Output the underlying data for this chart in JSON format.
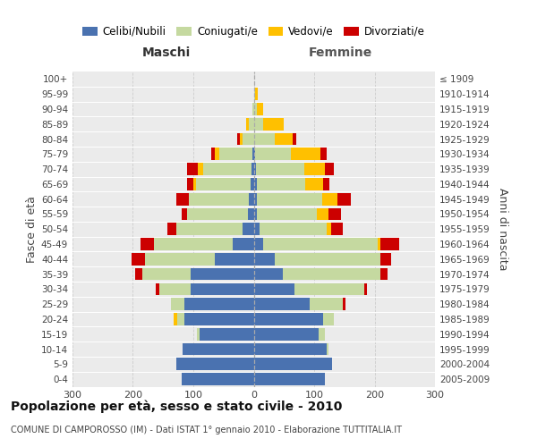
{
  "age_groups": [
    "100+",
    "95-99",
    "90-94",
    "85-89",
    "80-84",
    "75-79",
    "70-74",
    "65-69",
    "60-64",
    "55-59",
    "50-54",
    "45-49",
    "40-44",
    "35-39",
    "30-34",
    "25-29",
    "20-24",
    "15-19",
    "10-14",
    "5-9",
    "0-4"
  ],
  "birth_years": [
    "≤ 1909",
    "1910-1914",
    "1915-1919",
    "1920-1924",
    "1925-1929",
    "1930-1934",
    "1935-1939",
    "1940-1944",
    "1945-1949",
    "1950-1954",
    "1955-1959",
    "1960-1964",
    "1965-1969",
    "1970-1974",
    "1975-1979",
    "1980-1984",
    "1985-1989",
    "1990-1994",
    "1995-1999",
    "2000-2004",
    "2005-2009"
  ],
  "male_celibi": [
    0,
    0,
    0,
    0,
    0,
    2,
    3,
    5,
    8,
    10,
    18,
    35,
    65,
    105,
    105,
    115,
    115,
    90,
    118,
    128,
    120
  ],
  "male_coniugati": [
    0,
    0,
    2,
    8,
    18,
    55,
    80,
    90,
    100,
    100,
    110,
    130,
    115,
    80,
    52,
    22,
    12,
    4,
    0,
    0,
    0
  ],
  "male_vedovi": [
    0,
    0,
    0,
    5,
    5,
    8,
    10,
    5,
    0,
    0,
    0,
    0,
    0,
    0,
    0,
    0,
    5,
    0,
    0,
    0,
    0
  ],
  "male_divorziati": [
    0,
    0,
    0,
    0,
    5,
    5,
    18,
    10,
    20,
    10,
    15,
    22,
    22,
    12,
    5,
    0,
    0,
    0,
    0,
    0,
    0
  ],
  "female_nubili": [
    0,
    0,
    0,
    0,
    0,
    2,
    3,
    5,
    5,
    5,
    10,
    15,
    35,
    48,
    68,
    92,
    115,
    108,
    120,
    130,
    118
  ],
  "female_coniugate": [
    0,
    2,
    5,
    15,
    35,
    60,
    80,
    80,
    108,
    100,
    110,
    190,
    175,
    162,
    115,
    55,
    18,
    10,
    4,
    0,
    0
  ],
  "female_vedove": [
    0,
    5,
    10,
    35,
    30,
    48,
    35,
    30,
    25,
    18,
    8,
    5,
    0,
    0,
    0,
    0,
    0,
    0,
    0,
    0,
    0
  ],
  "female_divorziate": [
    0,
    0,
    0,
    0,
    5,
    10,
    15,
    10,
    22,
    22,
    20,
    30,
    18,
    12,
    5,
    5,
    0,
    0,
    0,
    0,
    0
  ],
  "color_celibi": "#4a72b0",
  "color_coniugati": "#c5d9a0",
  "color_vedovi": "#ffc000",
  "color_divorziati": "#cc0000",
  "title": "Popolazione per età, sesso e stato civile - 2010",
  "subtitle": "COMUNE DI CAMPOROSSO (IM) - Dati ISTAT 1° gennaio 2010 - Elaborazione TUTTITALIA.IT",
  "bg_color": "#ebebeb",
  "xlim": 300
}
